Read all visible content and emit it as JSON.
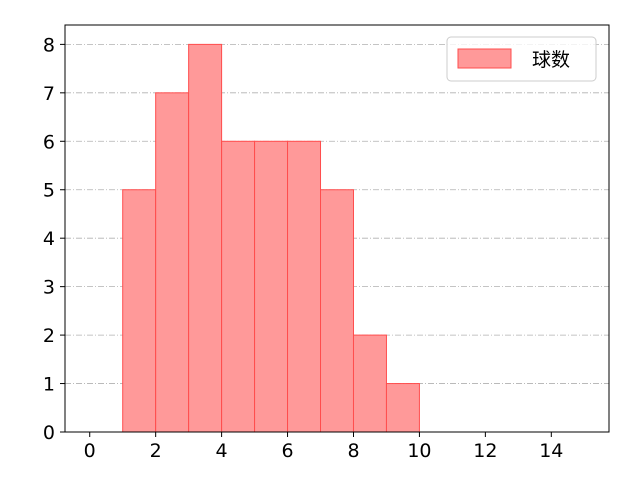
{
  "chart_data": {
    "type": "bar",
    "subtype": "histogram",
    "bins": [
      [
        1,
        2
      ],
      [
        2,
        3
      ],
      [
        3,
        4
      ],
      [
        4,
        5
      ],
      [
        5,
        6
      ],
      [
        6,
        7
      ],
      [
        7,
        8
      ],
      [
        8,
        9
      ],
      [
        9,
        10
      ]
    ],
    "series": [
      {
        "name": "球数",
        "values": [
          5,
          7,
          8,
          6,
          6,
          6,
          5,
          2,
          1
        ],
        "color": "#ff9999",
        "edge_color": "#ff4d4d"
      }
    ],
    "title": "",
    "xlabel": "",
    "ylabel": "",
    "xlim": [
      -0.75,
      15.75
    ],
    "ylim": [
      0,
      8.4
    ],
    "xticks": [
      0,
      2,
      4,
      6,
      8,
      10,
      12,
      14
    ],
    "yticks": [
      0,
      1,
      2,
      3,
      4,
      5,
      6,
      7,
      8
    ],
    "grid": {
      "axis": "y",
      "style": "dash-dot",
      "color": "#b0b0b0"
    },
    "legend": {
      "placement": "top-right",
      "entries": [
        "球数"
      ]
    }
  }
}
